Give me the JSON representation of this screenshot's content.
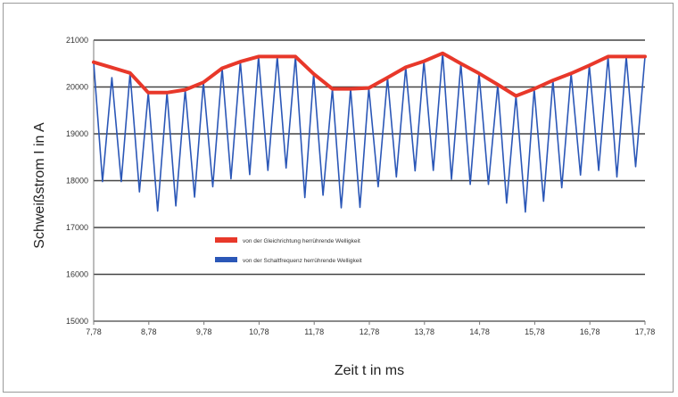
{
  "chart_data": {
    "type": "line",
    "title": "",
    "xlabel": "Zeit t in ms",
    "ylabel": "Schweißstrom I in A",
    "x_ticks": [
      "7,78",
      "8,78",
      "9,78",
      "10,78",
      "11,78",
      "12,78",
      "13,78",
      "14,78",
      "15,78",
      "16,78",
      "17,78"
    ],
    "y_ticks": [
      "21000",
      "20000",
      "19000",
      "18000",
      "17000",
      "16000",
      "15000"
    ],
    "xlim": [
      7.78,
      17.78
    ],
    "ylim": [
      15000,
      21000
    ],
    "grid": "horizontal",
    "legend_position": "center-left",
    "colors": {
      "envelope": "#e8382a",
      "ripple": "#2b57b7",
      "grid": "#444444",
      "axis": "#7a7a7a"
    },
    "series": [
      {
        "name": "von der Gleichrichtung herrührende Welligkeit",
        "x": [
          7.78,
          8.44,
          8.77,
          9.11,
          9.44,
          9.77,
          10.11,
          10.44,
          10.77,
          11.11,
          11.44,
          11.77,
          12.11,
          12.44,
          12.77,
          13.11,
          13.44,
          13.77,
          14.11,
          14.44,
          14.77,
          15.11,
          15.44,
          15.77,
          16.11,
          16.44,
          16.77,
          17.11,
          17.44,
          17.78
        ],
        "values": [
          20530,
          20300,
          19880,
          19880,
          19940,
          20100,
          20400,
          20540,
          20650,
          20650,
          20650,
          20280,
          19960,
          19960,
          19980,
          20200,
          20420,
          20550,
          20720,
          20500,
          20290,
          20050,
          19810,
          19960,
          20140,
          20290,
          20460,
          20650,
          20650,
          20650
        ]
      },
      {
        "name": "von der Schaltfrequenz herrührende Welligkeit",
        "x": [
          7.78,
          7.94,
          8.11,
          8.28,
          8.44,
          8.61,
          8.77,
          8.94,
          9.11,
          9.27,
          9.44,
          9.61,
          9.77,
          9.94,
          10.11,
          10.27,
          10.44,
          10.61,
          10.77,
          10.94,
          11.11,
          11.27,
          11.44,
          11.61,
          11.77,
          11.94,
          12.11,
          12.27,
          12.44,
          12.61,
          12.77,
          12.94,
          13.11,
          13.27,
          13.44,
          13.61,
          13.77,
          13.94,
          14.11,
          14.27,
          14.44,
          14.61,
          14.77,
          14.94,
          15.11,
          15.27,
          15.44,
          15.61,
          15.77,
          15.94,
          16.11,
          16.27,
          16.44,
          16.61,
          16.77,
          16.94,
          17.11,
          17.27,
          17.44,
          17.61,
          17.78
        ],
        "values": [
          20530,
          17980,
          20200,
          17980,
          20300,
          17760,
          19880,
          17350,
          19880,
          17460,
          19940,
          17650,
          20100,
          17870,
          20400,
          18040,
          20540,
          18130,
          20650,
          18220,
          20650,
          18270,
          20650,
          17640,
          20280,
          17690,
          19960,
          17420,
          19960,
          17430,
          19980,
          17870,
          20200,
          18080,
          20420,
          18210,
          20550,
          18220,
          20720,
          18030,
          20500,
          17920,
          20290,
          17920,
          20050,
          17520,
          19810,
          17330,
          19960,
          17560,
          20140,
          17850,
          20290,
          18120,
          20460,
          18220,
          20650,
          18080,
          20650,
          18300,
          20650
        ]
      }
    ]
  }
}
